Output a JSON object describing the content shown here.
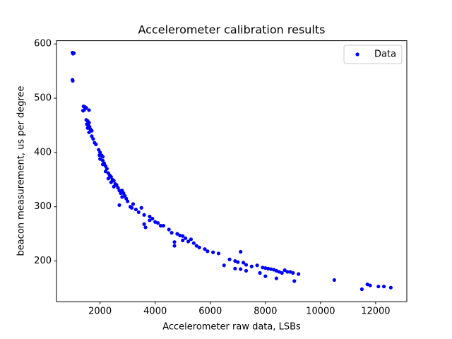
{
  "chart_data": {
    "type": "scatter",
    "title": "Accelerometer calibration results",
    "x_label": "Accelerometer raw data, LSBs",
    "y_label": "beacon measurement, us per degree",
    "xlim": [
      420,
      13130
    ],
    "ylim": [
      125,
      606
    ],
    "xticks": [
      2000,
      4000,
      6000,
      8000,
      10000,
      12000
    ],
    "yticks": [
      200,
      300,
      400,
      500,
      600
    ],
    "grid": false,
    "legend": "upper right",
    "series": [
      {
        "name": "Data",
        "color": "#0000ff",
        "x": [
          1000,
          1050,
          1020,
          1000,
          1010,
          1400,
          1450,
          1500,
          1420,
          1600,
          1380,
          1500,
          1550,
          1600,
          1520,
          1580,
          1620,
          1550,
          1650,
          1700,
          1600,
          1700,
          1750,
          1800,
          1850,
          1950,
          2000,
          1980,
          2050,
          2100,
          2000,
          2100,
          2150,
          2100,
          2200,
          2250,
          2200,
          2300,
          2350,
          2400,
          2300,
          2450,
          2500,
          2400,
          2550,
          2600,
          2500,
          2650,
          2700,
          2800,
          2750,
          2850,
          2900,
          2800,
          2950,
          3000,
          2700,
          3100,
          3200,
          3150,
          3300,
          3500,
          3400,
          3600,
          3800,
          3900,
          3800,
          4000,
          4100,
          3600,
          4200,
          4300,
          3650,
          4500,
          4600,
          4800,
          4900,
          5000,
          5100,
          5300,
          4700,
          5000,
          5200,
          5400,
          4700,
          5500,
          5600,
          5800,
          5900,
          6100,
          6300,
          6500,
          6700,
          6900,
          7000,
          7100,
          7200,
          7300,
          6900,
          7100,
          7300,
          7500,
          7700,
          7800,
          7900,
          8000,
          8100,
          8200,
          8300,
          8400,
          8500,
          8600,
          8700,
          8800,
          8900,
          9000,
          9200,
          8000,
          8400,
          9050,
          10500,
          11500,
          11700,
          11800,
          12100,
          12300,
          12550
        ],
        "y": [
          584,
          583,
          582,
          534,
          532,
          485,
          484,
          482,
          478,
          478,
          477,
          460,
          458,
          455,
          452,
          450,
          447,
          445,
          443,
          440,
          437,
          430,
          425,
          418,
          415,
          405,
          400,
          395,
          395,
          392,
          388,
          385,
          380,
          378,
          375,
          370,
          365,
          362,
          358,
          355,
          352,
          350,
          348,
          345,
          342,
          340,
          337,
          335,
          330,
          330,
          325,
          325,
          320,
          318,
          315,
          310,
          303,
          300,
          305,
          298,
          295,
          298,
          290,
          285,
          282,
          278,
          275,
          272,
          270,
          268,
          265,
          265,
          262,
          258,
          252,
          250,
          247,
          246,
          242,
          240,
          235,
          238,
          236,
          233,
          228,
          228,
          225,
          222,
          218,
          216,
          214,
          192,
          203,
          200,
          198,
          217,
          197,
          193,
          186,
          185,
          182,
          190,
          192,
          178,
          188,
          187,
          186,
          185,
          184,
          182,
          180,
          178,
          183,
          180,
          180,
          178,
          176,
          172,
          168,
          163,
          165,
          148,
          157,
          155,
          153,
          153,
          151
        ]
      }
    ]
  }
}
